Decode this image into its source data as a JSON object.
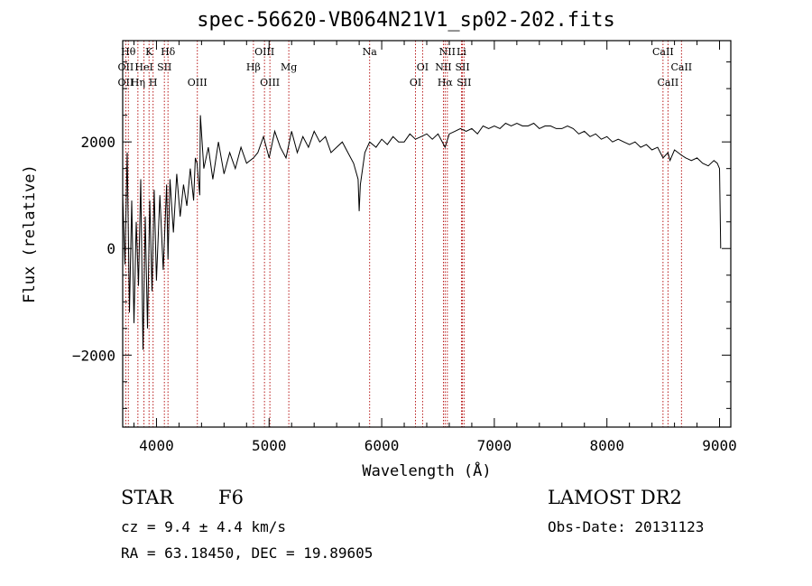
{
  "chart_data": {
    "type": "line",
    "title": "spec-56620-VB064N21V1_sp02-202.fits",
    "xlabel": "Wavelength (Å)",
    "ylabel": "Flux (relative)",
    "xlim": [
      3700,
      9100
    ],
    "ylim": [
      -3350,
      3900
    ],
    "x_ticks": [
      4000,
      5000,
      6000,
      7000,
      8000,
      9000
    ],
    "y_ticks": [
      -2000,
      0,
      2000
    ],
    "x_tick_labels": [
      "4000",
      "5000",
      "6000",
      "7000",
      "8000",
      "9000"
    ],
    "y_tick_labels": [
      "−2000",
      "0",
      "2000"
    ],
    "grid": false,
    "series": [
      {
        "x": [
          3700,
          3720,
          3740,
          3760,
          3780,
          3800,
          3820,
          3840,
          3860,
          3880,
          3900,
          3920,
          3940,
          3960,
          3980,
          4000,
          4030,
          4060,
          4090,
          4102,
          4120,
          4150,
          4180,
          4210,
          4240,
          4270,
          4300,
          4330,
          4345,
          4360,
          4384,
          4390,
          4420,
          4460,
          4500,
          4550,
          4600,
          4650,
          4700,
          4750,
          4800,
          4861,
          4900,
          4950,
          5000,
          5050,
          5100,
          5150,
          5200,
          5250,
          5300,
          5350,
          5400,
          5450,
          5500,
          5550,
          5600,
          5650,
          5700,
          5750,
          5790,
          5800,
          5810,
          5850,
          5893,
          5950,
          6000,
          6050,
          6100,
          6150,
          6200,
          6250,
          6300,
          6350,
          6400,
          6450,
          6500,
          6563,
          6600,
          6650,
          6700,
          6750,
          6800,
          6850,
          6900,
          6950,
          7000,
          7050,
          7100,
          7150,
          7200,
          7250,
          7300,
          7350,
          7400,
          7450,
          7500,
          7550,
          7600,
          7650,
          7700,
          7750,
          7800,
          7850,
          7900,
          7950,
          8000,
          8050,
          8100,
          8150,
          8200,
          8250,
          8300,
          8350,
          8400,
          8450,
          8498,
          8542,
          8560,
          8600,
          8662,
          8700,
          8750,
          8800,
          8850,
          8900,
          8950,
          8980,
          9000,
          9010
        ],
        "y": [
          1000,
          -300,
          1800,
          -1200,
          900,
          -1400,
          500,
          -700,
          1300,
          -1900,
          600,
          -1500,
          900,
          -800,
          1100,
          -600,
          1000,
          -400,
          1200,
          -200,
          1300,
          300,
          1400,
          600,
          1200,
          800,
          1500,
          900,
          1700,
          1600,
          1000,
          2500,
          1500,
          1900,
          1300,
          2000,
          1400,
          1800,
          1500,
          1900,
          1600,
          1700,
          1800,
          2100,
          1700,
          2200,
          1900,
          1700,
          2200,
          1800,
          2100,
          1900,
          2200,
          2000,
          2100,
          1800,
          1900,
          2000,
          1800,
          1600,
          1300,
          700,
          1200,
          1800,
          2000,
          1900,
          2050,
          1950,
          2100,
          2000,
          2000,
          2150,
          2050,
          2100,
          2150,
          2050,
          2150,
          1900,
          2150,
          2200,
          2250,
          2200,
          2250,
          2150,
          2300,
          2250,
          2300,
          2250,
          2350,
          2300,
          2350,
          2300,
          2300,
          2350,
          2250,
          2300,
          2300,
          2250,
          2250,
          2300,
          2250,
          2150,
          2200,
          2100,
          2150,
          2050,
          2100,
          2000,
          2050,
          2000,
          1950,
          2000,
          1900,
          1950,
          1850,
          1900,
          1700,
          1800,
          1650,
          1850,
          1750,
          1700,
          1650,
          1700,
          1600,
          1550,
          1650,
          1600,
          1500,
          0
        ]
      }
    ],
    "annotations": [
      {
        "x": 3750,
        "label": "Hθ",
        "row": 1
      },
      {
        "x": 3934,
        "label": "K",
        "row": 1
      },
      {
        "x": 4102,
        "label": "Hδ",
        "row": 1
      },
      {
        "x": 3727,
        "label": "OII",
        "row": 2
      },
      {
        "x": 3889,
        "label": "HeI",
        "row": 2
      },
      {
        "x": 4070,
        "label": "SII",
        "row": 2
      },
      {
        "x": 3727,
        "label": "OII",
        "row": 3
      },
      {
        "x": 3835,
        "label": "Hη",
        "row": 3
      },
      {
        "x": 3970,
        "label": "H",
        "row": 3
      },
      {
        "x": 4363,
        "label": "OIII",
        "row": 3
      },
      {
        "x": 4959,
        "label": "OIII",
        "row": 1
      },
      {
        "x": 4861,
        "label": "Hβ",
        "row": 2
      },
      {
        "x": 5175,
        "label": "Mg",
        "row": 2
      },
      {
        "x": 5007,
        "label": "OIII",
        "row": 3
      },
      {
        "x": 5893,
        "label": "Na",
        "row": 1
      },
      {
        "x": 6363,
        "label": "OI",
        "row": 2
      },
      {
        "x": 6300,
        "label": "OI",
        "row": 3
      },
      {
        "x": 6583,
        "label": "NII",
        "row": 1
      },
      {
        "x": 6708,
        "label": "Li",
        "row": 1
      },
      {
        "x": 6548,
        "label": "NII",
        "row": 2
      },
      {
        "x": 6717,
        "label": "SII",
        "row": 2
      },
      {
        "x": 6563,
        "label": "Hα",
        "row": 3
      },
      {
        "x": 6731,
        "label": "SII",
        "row": 3
      },
      {
        "x": 8498,
        "label": "CaII",
        "row": 1
      },
      {
        "x": 8662,
        "label": "CaII",
        "row": 2
      },
      {
        "x": 8542,
        "label": "CaII",
        "row": 3
      }
    ]
  },
  "info": {
    "object_class": "STAR",
    "subclass": "F6",
    "cz": "cz = 9.4 ± 4.4 km/s",
    "coords": "RA =  63.18450, DEC =  19.89605",
    "survey": "LAMOST DR2",
    "obs_date": "Obs-Date: 20131123"
  }
}
